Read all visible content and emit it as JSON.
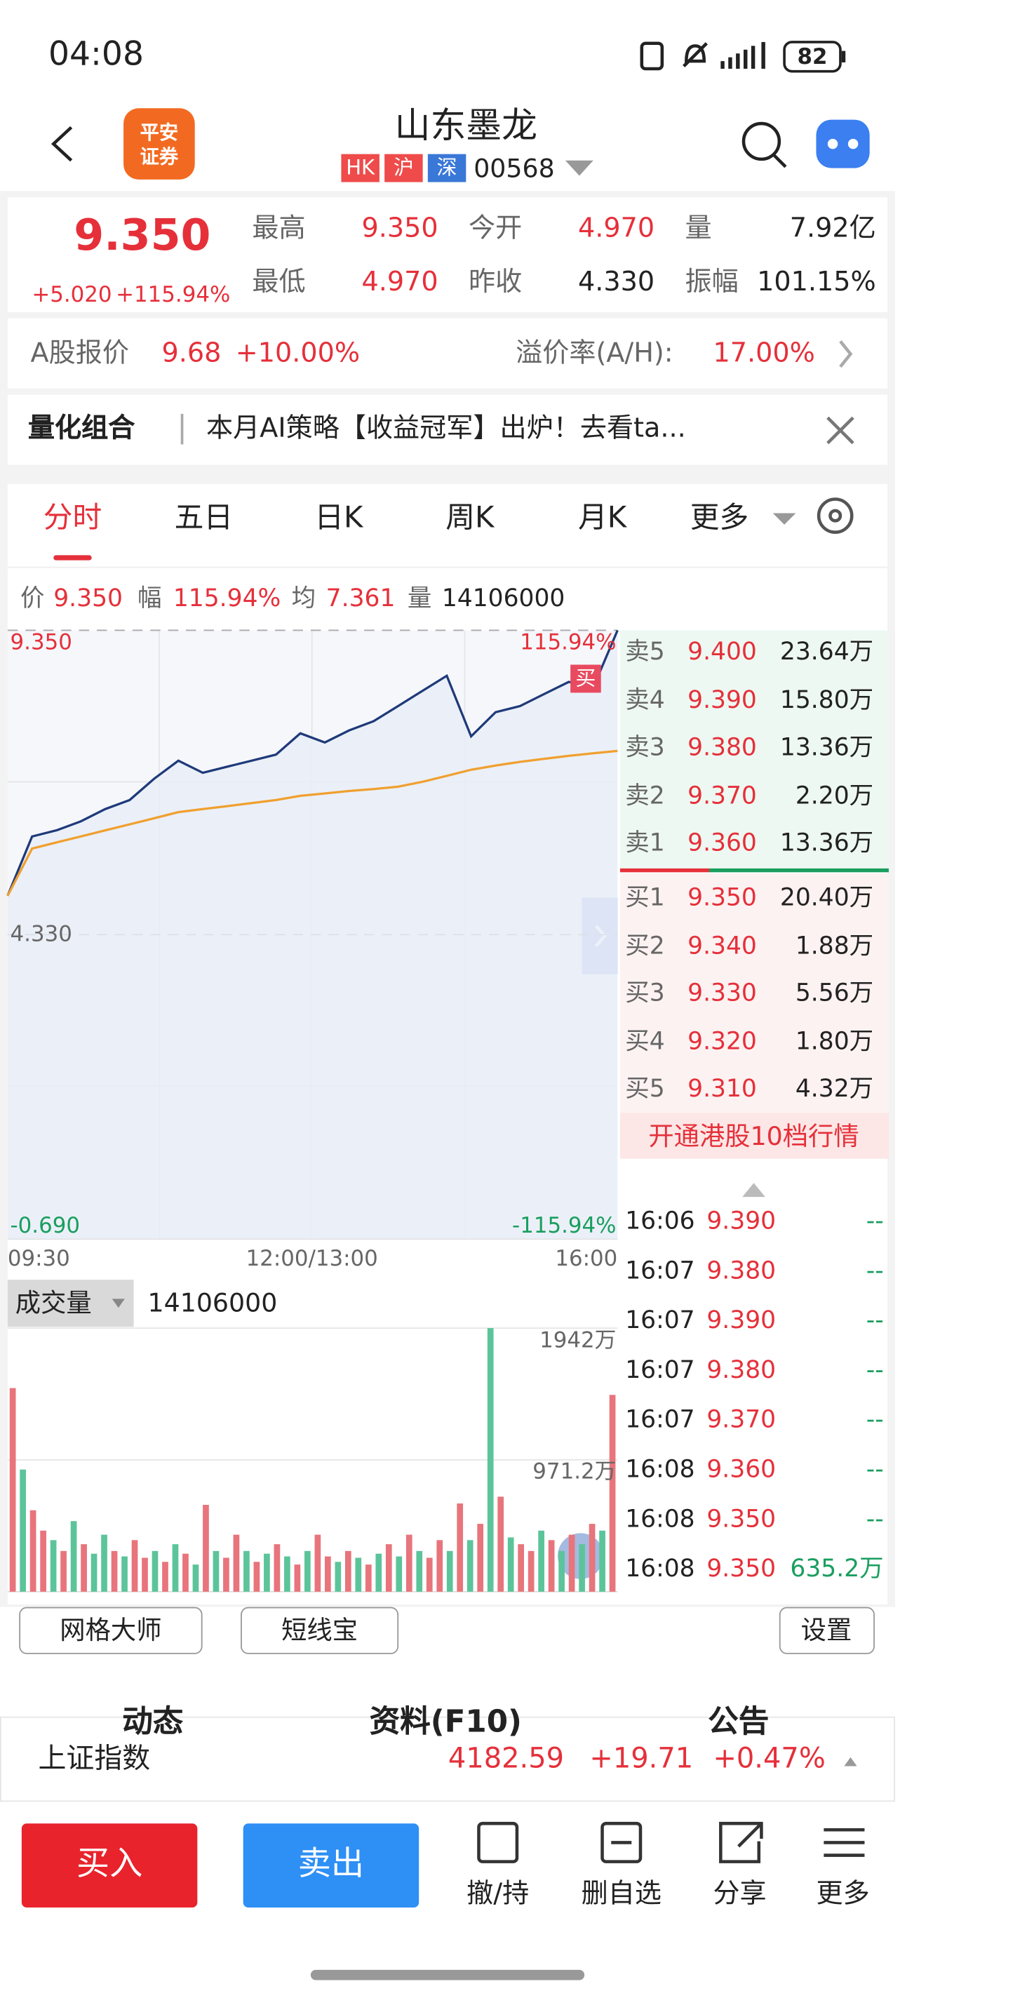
{
  "status_bar": {
    "time": "04:08",
    "battery": "82"
  },
  "header": {
    "logo": [
      "平安",
      "证券"
    ],
    "title": "山东墨龙",
    "badges": [
      "HK",
      "沪",
      "深"
    ],
    "code": "00568"
  },
  "quote": {
    "price": "9.350",
    "change": "+5.020",
    "change_pct": "+115.94%",
    "stats": [
      {
        "label": "最高",
        "value": "9.350"
      },
      {
        "label": "最低",
        "value": "4.970"
      },
      {
        "label": "今开",
        "value": "4.970"
      },
      {
        "label": "昨收",
        "value": "4.330"
      },
      {
        "label": "量",
        "value": "7.92亿"
      },
      {
        "label": "振幅",
        "value": "101.15%"
      }
    ]
  },
  "a_share": {
    "label": "A股报价",
    "price": "9.68",
    "change_pct": "+10.00%",
    "premium_label": "溢价率(A/H):",
    "premium": "17.00%"
  },
  "banner": {
    "tag": "量化组合",
    "text": "本月AI策略【收益冠军】出炉！去看ta..."
  },
  "tabs": [
    "分时",
    "五日",
    "日K",
    "周K",
    "月K",
    "更多"
  ],
  "summary": [
    {
      "label": "价",
      "value": "9.350"
    },
    {
      "label": "幅",
      "value": "115.94%"
    },
    {
      "label": "均",
      "value": "7.361"
    },
    {
      "label": "量",
      "value": "14106000"
    }
  ],
  "chart_data": [
    {
      "type": "line",
      "x_labels": [
        "09:30",
        "12:00/13:00",
        "16:00"
      ],
      "series": [
        {
          "color": "#1f3a7a",
          "values": [
            4.97,
            5.95,
            6.05,
            6.2,
            6.4,
            6.55,
            6.9,
            7.2,
            7.0,
            7.1,
            7.2,
            7.3,
            7.65,
            7.5,
            7.7,
            7.85,
            8.1,
            8.35,
            8.6,
            7.6,
            8.0,
            8.1,
            8.3,
            8.5,
            8.4,
            9.35
          ]
        },
        {
          "color": "#f0a030",
          "values": [
            4.97,
            5.75,
            5.85,
            5.95,
            6.05,
            6.15,
            6.25,
            6.35,
            6.4,
            6.45,
            6.5,
            6.55,
            6.62,
            6.66,
            6.7,
            6.73,
            6.77,
            6.85,
            6.95,
            7.05,
            7.12,
            7.18,
            7.23,
            7.28,
            7.32,
            7.361
          ]
        }
      ],
      "ylim": [
        -0.69,
        9.35
      ],
      "yticks": [
        {
          "value": 9.35,
          "label": "9.350"
        },
        {
          "value": 4.33,
          "label": "4.330"
        },
        {
          "value": -0.69,
          "label": "-0.690"
        }
      ],
      "y2lim": [
        -115.94,
        115.94
      ],
      "y2ticks": [
        {
          "value": 115.94,
          "label": "115.94%"
        },
        {
          "value": -115.94,
          "label": "-115.94%"
        }
      ],
      "annotation": "买",
      "grid": true
    },
    {
      "type": "bar",
      "title": "成交量",
      "total": "14106000",
      "values": [
        1500,
        900,
        600,
        450,
        380,
        300,
        520,
        350,
        280,
        420,
        300,
        260,
        380,
        250,
        300,
        220,
        350,
        280,
        200,
        640,
        300,
        250,
        420,
        300,
        220,
        280,
        350,
        260,
        200,
        300,
        420,
        260,
        220,
        300,
        250,
        200,
        280,
        350,
        260,
        420,
        300,
        250,
        380,
        300,
        650,
        380,
        500,
        1942,
        700,
        400,
        350,
        300,
        450,
        380,
        300,
        420,
        350,
        500,
        450,
        1450
      ],
      "colors": [
        "#e8747c",
        "#5cc49a",
        "#e8747c",
        "#e8747c",
        "#5cc49a",
        "#e8747c",
        "#5cc49a",
        "#e8747c",
        "#5cc49a",
        "#5cc49a",
        "#e8747c",
        "#5cc49a",
        "#e8747c",
        "#e8747c",
        "#5cc49a",
        "#e8747c",
        "#5cc49a",
        "#e8747c",
        "#5cc49a",
        "#e8747c",
        "#5cc49a",
        "#e8747c",
        "#e8747c",
        "#5cc49a",
        "#e8747c",
        "#5cc49a",
        "#e8747c",
        "#5cc49a",
        "#e8747c",
        "#5cc49a",
        "#e8747c",
        "#e8747c",
        "#5cc49a",
        "#e8747c",
        "#5cc49a",
        "#e8747c",
        "#5cc49a",
        "#e8747c",
        "#5cc49a",
        "#e8747c",
        "#5cc49a",
        "#e8747c",
        "#e8747c",
        "#5cc49a",
        "#e8747c",
        "#5cc49a",
        "#e8747c",
        "#5cc49a",
        "#e8747c",
        "#5cc49a",
        "#e8747c",
        "#e8747c",
        "#5cc49a",
        "#e8747c",
        "#5cc49a",
        "#e8747c",
        "#5cc49a",
        "#e8747c",
        "#5cc49a",
        "#e8747c"
      ],
      "ylim": [
        0,
        1942
      ],
      "yticks": [
        {
          "value": 1942,
          "label": "1942万"
        },
        {
          "value": 971.2,
          "label": "971.2万"
        }
      ]
    }
  ],
  "order_book": {
    "asks": [
      {
        "label": "卖5",
        "price": "9.400",
        "volume": "23.64万"
      },
      {
        "label": "卖4",
        "price": "9.390",
        "volume": "15.80万"
      },
      {
        "label": "卖3",
        "price": "9.380",
        "volume": "13.36万"
      },
      {
        "label": "卖2",
        "price": "9.370",
        "volume": "2.20万"
      },
      {
        "label": "卖1",
        "price": "9.360",
        "volume": "13.36万"
      }
    ],
    "bids": [
      {
        "label": "买1",
        "price": "9.350",
        "volume": "20.40万"
      },
      {
        "label": "买2",
        "price": "9.340",
        "volume": "1.88万"
      },
      {
        "label": "买3",
        "price": "9.330",
        "volume": "5.56万"
      },
      {
        "label": "买4",
        "price": "9.320",
        "volume": "1.80万"
      },
      {
        "label": "买5",
        "price": "9.310",
        "volume": "4.32万"
      }
    ],
    "upgrade": "开通港股10档行情"
  },
  "trades": [
    {
      "time": "16:06",
      "price": "9.390",
      "volume": "--"
    },
    {
      "time": "16:07",
      "price": "9.380",
      "volume": "--"
    },
    {
      "time": "16:07",
      "price": "9.390",
      "volume": "--"
    },
    {
      "time": "16:07",
      "price": "9.380",
      "volume": "--"
    },
    {
      "time": "16:07",
      "price": "9.370",
      "volume": "--"
    },
    {
      "time": "16:08",
      "price": "9.360",
      "volume": "--"
    },
    {
      "time": "16:08",
      "price": "9.350",
      "volume": "--"
    },
    {
      "time": "16:08",
      "price": "9.350",
      "volume": "635.2万"
    }
  ],
  "tools": [
    "网格大师",
    "短线宝"
  ],
  "settings": "设置",
  "sections": [
    "动态",
    "资料(F10)",
    "公告"
  ],
  "index": {
    "name": "上证指数",
    "value": "4182.59",
    "change": "+19.71",
    "change_pct": "+0.47%"
  },
  "actions": {
    "buy": "买入",
    "sell": "卖出",
    "items": [
      "撤/持",
      "删自选",
      "分享",
      "更多"
    ]
  }
}
